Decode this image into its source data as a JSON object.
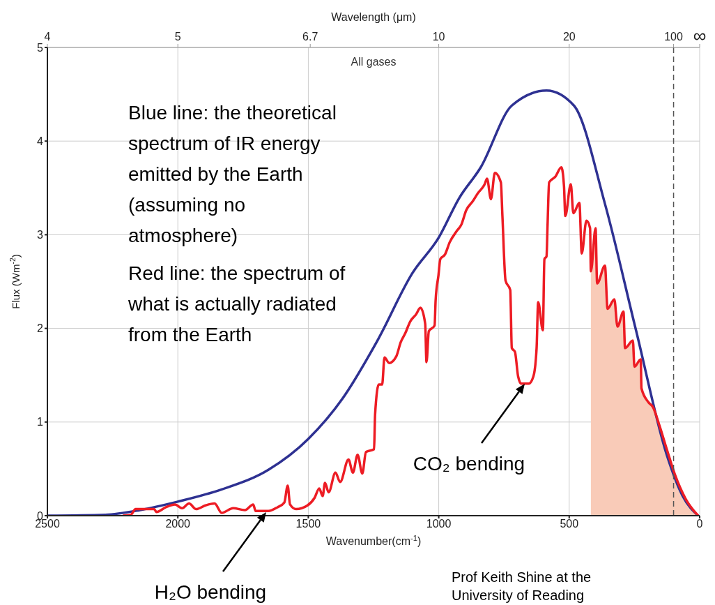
{
  "chart_data": {
    "type": "line",
    "title": "All gases",
    "xlabel": "Wavenumber(cm$^{-1}$)",
    "x2label": "Wavelength (μm)",
    "ylabel": "Flux (Wm$^{-2}$)",
    "xlim": [
      2500,
      0
    ],
    "xticks": [
      2500,
      2000,
      1500,
      1000,
      500,
      0
    ],
    "ylim": [
      0,
      5
    ],
    "yticks": [
      0,
      1,
      2,
      3,
      4,
      5
    ],
    "grid": true,
    "marker": "none",
    "line_style": "solid",
    "series": [
      {
        "type": "area",
        "color": "#f9cbb8",
        "x": [
          417,
          399,
          393,
          363,
          353,
          327,
          315,
          292,
          286,
          256,
          250,
          226,
          223,
          196,
          179,
          155,
          125,
          95,
          54,
          6
        ],
        "values": [
          2.61,
          3.07,
          2.48,
          2.67,
          2.21,
          2.31,
          2.02,
          2.18,
          1.79,
          1.87,
          1.59,
          1.67,
          1.36,
          1.21,
          1.16,
          0.97,
          0.7,
          0.44,
          0.18,
          0
        ]
      },
      {
        "type": "line",
        "color": "#2e3192",
        "x": [
          2500,
          2278,
          2145,
          2000,
          1832,
          1653,
          1500,
          1369,
          1235,
          1101,
          1000,
          922,
          839,
          720,
          587,
          482,
          363,
          244,
          125,
          65,
          6
        ],
        "values": [
          0,
          0.01,
          0.06,
          0.15,
          0.28,
          0.49,
          0.82,
          1.25,
          1.87,
          2.59,
          2.97,
          3.39,
          3.72,
          4.38,
          4.54,
          4.38,
          3.33,
          1.98,
          0.64,
          0.21,
          0
        ]
      },
      {
        "type": "line",
        "color": "#ed1c24",
        "x": [
          2211,
          2180,
          2162,
          2091,
          2082,
          2046,
          2011,
          1984,
          1957,
          1930,
          1894,
          1859,
          1832,
          1788,
          1743,
          1711,
          1702,
          1653,
          1618,
          1592,
          1579,
          1570,
          1547,
          1503,
          1476,
          1458,
          1445,
          1436,
          1422,
          1396,
          1378,
          1346,
          1329,
          1311,
          1293,
          1279,
          1248,
          1244,
          1230,
          1217,
          1208,
          1190,
          1163,
          1146,
          1128,
          1110,
          1087,
          1070,
          1052,
          1047,
          1038,
          1016,
          1012,
          1001,
          994,
          976,
          958,
          931,
          913,
          895,
          869,
          851,
          824,
          815,
          800,
          785,
          762,
          756,
          744,
          726,
          720,
          708,
          696,
          684,
          655,
          637,
          625,
          619,
          601,
          595,
          587,
          583,
          577,
          553,
          530,
          520,
          515,
          494,
          484,
          461,
          452,
          434,
          420,
          417,
          399,
          393,
          363,
          353,
          327,
          315,
          292,
          286,
          256,
          250,
          226,
          223,
          196,
          179,
          155,
          125,
          95,
          54,
          6
        ],
        "values": [
          0,
          0.01,
          0.07,
          0.07,
          0.04,
          0.09,
          0.12,
          0.08,
          0.13,
          0.07,
          0.11,
          0.13,
          0.03,
          0.08,
          0.06,
          0.12,
          0.05,
          0.05,
          0.09,
          0.14,
          0.32,
          0.12,
          0.07,
          0.11,
          0.19,
          0.29,
          0.21,
          0.35,
          0.25,
          0.46,
          0.36,
          0.6,
          0.46,
          0.65,
          0.45,
          0.68,
          0.71,
          1.08,
          1.4,
          1.4,
          1.69,
          1.63,
          1.7,
          1.85,
          1.95,
          2.07,
          2.15,
          2.22,
          2.05,
          1.64,
          1.97,
          2.03,
          2.3,
          2.57,
          2.74,
          2.79,
          2.92,
          3.04,
          3.11,
          3.26,
          3.36,
          3.44,
          3.54,
          3.6,
          3.38,
          3.66,
          3.56,
          3.2,
          2.51,
          2.41,
          1.79,
          1.75,
          1.49,
          1.41,
          1.41,
          1.49,
          1.79,
          2.28,
          1.98,
          2.74,
          2.77,
          3.1,
          3.56,
          3.62,
          3.72,
          3.52,
          3.2,
          3.54,
          3.23,
          3.34,
          2.8,
          3.15,
          3.07,
          2.61,
          3.07,
          2.48,
          2.67,
          2.21,
          2.31,
          2.02,
          2.18,
          1.79,
          1.87,
          1.59,
          1.67,
          1.36,
          1.21,
          1.16,
          0.97,
          0.7,
          0.44,
          0.18,
          0
        ]
      }
    ],
    "ref_lines": [
      {
        "axis": "x",
        "value": 100,
        "color": "#555555",
        "line_style": "dashed"
      }
    ],
    "annotations": [
      "Blue line: the theoretical spectrum of IR energy emitted by the Earth (assuming no atmosphere)",
      "Red line: the spectrum of what is actually radiated from the Earth",
      "CO₂ bending",
      "H₂O bending",
      "Prof Keith Shine at the University of Reading",
      "4",
      "5",
      "6.7",
      "10",
      "20",
      "100",
      "∞"
    ]
  }
}
